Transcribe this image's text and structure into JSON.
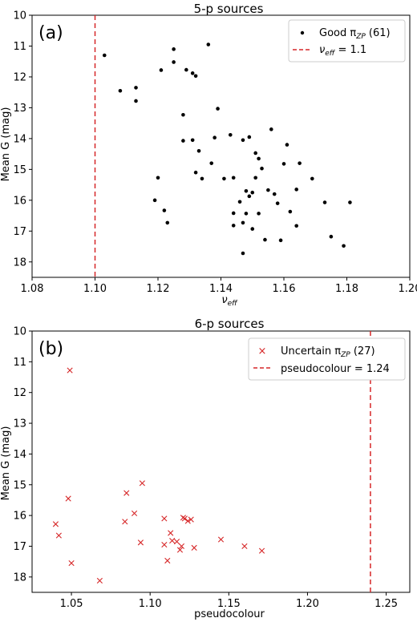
{
  "chart_data": [
    {
      "type": "scatter",
      "title": "5-p sources",
      "panel_label": "(a)",
      "xlabel": "ν",
      "xlabel_sub": "eff",
      "ylabel": "Mean G (mag)",
      "xlim": [
        1.08,
        1.2
      ],
      "ylim": [
        18.5,
        10
      ],
      "y_inverted": true,
      "xticks": [
        "1.08",
        "1.10",
        "1.12",
        "1.14",
        "1.16",
        "1.18",
        "1.20"
      ],
      "yticks": [
        "10",
        "11",
        "12",
        "13",
        "14",
        "15",
        "16",
        "17",
        "18"
      ],
      "legend_position": "top-right",
      "series": [
        {
          "name": "Good π",
          "name_sub": "ZP",
          "name_suffix": " (61)",
          "marker": "dot",
          "color": "#000000",
          "points": [
            [
              1.103,
              11.3
            ],
            [
              1.108,
              12.45
            ],
            [
              1.113,
              12.35
            ],
            [
              1.113,
              12.78
            ],
            [
              1.12,
              15.27
            ],
            [
              1.119,
              16.0
            ],
            [
              1.121,
              11.78
            ],
            [
              1.122,
              16.33
            ],
            [
              1.123,
              16.73
            ],
            [
              1.125,
              11.1
            ],
            [
              1.125,
              11.52
            ],
            [
              1.128,
              13.23
            ],
            [
              1.128,
              14.07
            ],
            [
              1.129,
              11.77
            ],
            [
              1.131,
              11.88
            ],
            [
              1.131,
              14.05
            ],
            [
              1.132,
              11.97
            ],
            [
              1.132,
              15.1
            ],
            [
              1.133,
              14.4
            ],
            [
              1.134,
              15.3
            ],
            [
              1.136,
              10.95
            ],
            [
              1.137,
              14.8
            ],
            [
              1.138,
              13.97
            ],
            [
              1.139,
              13.03
            ],
            [
              1.141,
              15.3
            ],
            [
              1.143,
              13.88
            ],
            [
              1.144,
              15.27
            ],
            [
              1.144,
              16.42
            ],
            [
              1.144,
              16.82
            ],
            [
              1.147,
              14.05
            ],
            [
              1.147,
              16.73
            ],
            [
              1.147,
              17.72
            ],
            [
              1.148,
              15.7
            ],
            [
              1.148,
              16.43
            ],
            [
              1.149,
              13.95
            ],
            [
              1.149,
              15.87
            ],
            [
              1.15,
              15.75
            ],
            [
              1.15,
              16.93
            ],
            [
              1.151,
              14.47
            ],
            [
              1.151,
              15.27
            ],
            [
              1.152,
              14.65
            ],
            [
              1.152,
              16.43
            ],
            [
              1.153,
              14.97
            ],
            [
              1.154,
              17.28
            ],
            [
              1.155,
              15.67
            ],
            [
              1.156,
              13.7
            ],
            [
              1.157,
              15.8
            ],
            [
              1.158,
              16.1
            ],
            [
              1.159,
              17.3
            ],
            [
              1.16,
              14.82
            ],
            [
              1.161,
              14.2
            ],
            [
              1.162,
              16.37
            ],
            [
              1.164,
              15.65
            ],
            [
              1.164,
              16.83
            ],
            [
              1.165,
              14.8
            ],
            [
              1.169,
              15.3
            ],
            [
              1.173,
              16.07
            ],
            [
              1.175,
              17.18
            ],
            [
              1.179,
              17.48
            ],
            [
              1.181,
              16.07
            ],
            [
              1.146,
              16.05
            ]
          ]
        },
        {
          "name": "ν",
          "name_sub": "eff",
          "name_suffix": " = 1.1",
          "marker": "dashed-vline",
          "color": "#d62728",
          "x": 1.1
        }
      ]
    },
    {
      "type": "scatter",
      "title": "6-p sources",
      "panel_label": "(b)",
      "xlabel": "pseudocolour",
      "xlabel_sub": "",
      "ylabel": "Mean G (mag)",
      "xlim": [
        1.025,
        1.265
      ],
      "ylim": [
        18.5,
        10
      ],
      "y_inverted": true,
      "xticks": [
        "1.05",
        "1.10",
        "1.15",
        "1.20",
        "1.25"
      ],
      "xtick_values": [
        1.05,
        1.1,
        1.15,
        1.2,
        1.25
      ],
      "yticks": [
        "10",
        "11",
        "12",
        "13",
        "14",
        "15",
        "16",
        "17",
        "18"
      ],
      "legend_position": "top-right",
      "series": [
        {
          "name": "Uncertain π",
          "name_sub": "ZP",
          "name_suffix": " (27)",
          "marker": "x",
          "color": "#d62728",
          "points": [
            [
              1.049,
              11.28
            ],
            [
              1.048,
              15.45
            ],
            [
              1.04,
              16.28
            ],
            [
              1.042,
              16.65
            ],
            [
              1.05,
              17.55
            ],
            [
              1.068,
              18.12
            ],
            [
              1.084,
              16.2
            ],
            [
              1.085,
              15.27
            ],
            [
              1.09,
              15.93
            ],
            [
              1.094,
              16.88
            ],
            [
              1.095,
              14.95
            ],
            [
              1.109,
              16.1
            ],
            [
              1.109,
              16.95
            ],
            [
              1.111,
              17.47
            ],
            [
              1.113,
              16.57
            ],
            [
              1.114,
              16.82
            ],
            [
              1.119,
              17.12
            ],
            [
              1.12,
              17.0
            ],
            [
              1.122,
              16.1
            ],
            [
              1.124,
              16.18
            ],
            [
              1.126,
              16.13
            ],
            [
              1.128,
              17.05
            ],
            [
              1.145,
              16.78
            ],
            [
              1.16,
              17.0
            ],
            [
              1.171,
              17.15
            ],
            [
              1.121,
              16.07
            ],
            [
              1.117,
              16.85
            ]
          ]
        },
        {
          "name": "pseudocolour",
          "name_sub": "",
          "name_suffix": " = 1.24",
          "marker": "dashed-vline",
          "color": "#d62728",
          "x": 1.24
        }
      ]
    }
  ]
}
